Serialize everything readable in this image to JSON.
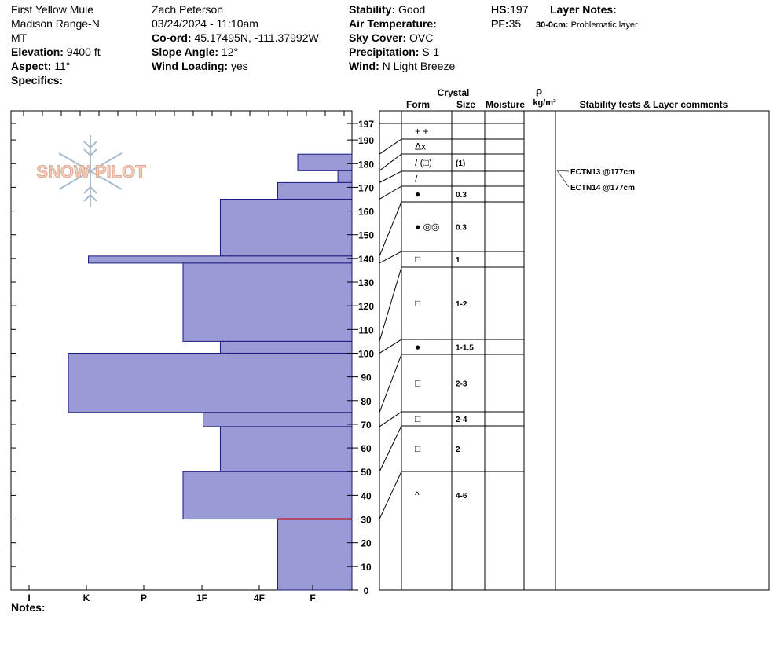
{
  "header": {
    "location": "First Yellow Mule",
    "range": "Madison Range-N",
    "state": "MT",
    "elevation_label": "Elevation:",
    "elevation": "9400 ft",
    "aspect_label": "Aspect:",
    "aspect": "11°",
    "specifics_label": "Specifics:",
    "observer": "Zach Peterson",
    "datetime": "03/24/2024 - 11:10am",
    "coord_label": "Co-ord:",
    "coord": "45.17495N, -111.37992W",
    "slope_label": "Slope Angle:",
    "slope": "12°",
    "wind_loading_label": "Wind Loading:",
    "wind_loading": "yes",
    "stability_label": "Stability:",
    "stability": "Good",
    "air_temp_label": "Air Temperature:",
    "sky_label": "Sky Cover:",
    "sky": "OVC",
    "precip_label": "Precipitation:",
    "precip": "S-1",
    "wind_label": "Wind:",
    "wind": "N Light Breeze",
    "hs_label": "HS:",
    "hs": "197",
    "pf_label": "PF:",
    "pf": "35",
    "layer_notes_label": "Layer Notes:",
    "layer_note_depth": "30-0cm:",
    "layer_note_text": "Problematic layer"
  },
  "logo_text": "SNOW PILOT",
  "notes_label": "Notes:",
  "columns": {
    "crystal": "Crystal",
    "form": "Form",
    "size": "Size",
    "moisture": "Moisture",
    "rho": "ρ",
    "density_unit": "kg/m³",
    "comments": "Stability tests & Layer comments"
  },
  "colors": {
    "bar_fill": "#9a9ad6",
    "bar_stroke": "#1a1a80",
    "problem_layer": "#c00000"
  },
  "chart_data": {
    "type": "bar",
    "title": "",
    "hardness_scale": [
      "I",
      "K",
      "P",
      "1F",
      "4F",
      "F"
    ],
    "height_ticks": [
      0,
      10,
      20,
      30,
      40,
      50,
      60,
      70,
      80,
      90,
      100,
      110,
      120,
      130,
      140,
      150,
      160,
      170,
      180,
      190,
      197
    ],
    "ylim": [
      0,
      197
    ],
    "layers": [
      {
        "top": 197,
        "bottom": 190,
        "hardness": "F+"
      },
      {
        "top": 190,
        "bottom": 184,
        "hardness": "F-"
      },
      {
        "top": 184,
        "bottom": 177,
        "hardness": "4F"
      },
      {
        "top": 177,
        "bottom": 172,
        "hardness": "4F-"
      },
      {
        "top": 172,
        "bottom": 165,
        "hardness": "4F+"
      },
      {
        "top": 165,
        "bottom": 141,
        "hardness": "1F"
      },
      {
        "top": 141,
        "bottom": 138,
        "hardness": "K+"
      },
      {
        "top": 138,
        "bottom": 105,
        "hardness": "P"
      },
      {
        "top": 105,
        "bottom": 100,
        "hardness": "1F"
      },
      {
        "top": 100,
        "bottom": 75,
        "hardness": "K"
      },
      {
        "top": 75,
        "bottom": 69,
        "hardness": "1F-"
      },
      {
        "top": 69,
        "bottom": 50,
        "hardness": "1F"
      },
      {
        "top": 50,
        "bottom": 30,
        "hardness": "P"
      },
      {
        "top": 30,
        "bottom": 0,
        "hardness": "4F+"
      }
    ],
    "problem_layer_height": 30,
    "hardness_values": [
      6.75,
      6.4,
      5.0,
      5.7,
      4.65,
      3.65,
      1.35,
      3.0,
      3.65,
      1.0,
      3.35,
      3.65,
      3.0,
      4.65
    ],
    "crystal_layers": [
      {
        "top": 197,
        "bottom": 184,
        "icons": [
          "+",
          "+"
        ],
        "size": ""
      },
      {
        "top": 184,
        "bottom": 177,
        "icons": [
          "Δx"
        ],
        "size": ""
      },
      {
        "top": 177,
        "bottom": 172,
        "icons": [
          "/ (□)"
        ],
        "size": "(1)"
      },
      {
        "top": 172,
        "bottom": 165,
        "icons": [
          "/"
        ],
        "size": ""
      },
      {
        "top": 165,
        "bottom": 141,
        "icons": [
          "●"
        ],
        "size": "0.3"
      },
      {
        "top": 141,
        "bottom": 138,
        "icons": [
          "● ◎◎"
        ],
        "size": "0.3"
      },
      {
        "top": 138,
        "bottom": 105,
        "icons": [
          "□"
        ],
        "size": "1"
      },
      {
        "top": 105,
        "bottom": 100,
        "icons": [
          "□"
        ],
        "size": "1-2"
      },
      {
        "top": 100,
        "bottom": 75,
        "icons": [
          "●"
        ],
        "size": "1-1.5"
      },
      {
        "top": 75,
        "bottom": 69,
        "icons": [
          "□"
        ],
        "size": "2-3"
      },
      {
        "top": 69,
        "bottom": 50,
        "icons": [
          "□"
        ],
        "size": "2-4"
      },
      {
        "top": 50,
        "bottom": 30,
        "icons": [
          "□"
        ],
        "size": "2"
      },
      {
        "top": 30,
        "bottom": 0,
        "icons": [
          "^"
        ],
        "size": "4-6"
      }
    ],
    "tests": [
      {
        "label": "ECTN13 @177cm",
        "height": 177
      },
      {
        "label": "ECTN14 @177cm",
        "height": 177
      }
    ]
  }
}
